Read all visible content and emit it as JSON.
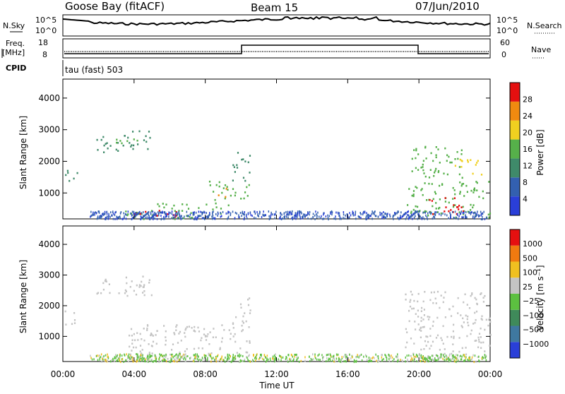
{
  "header": {
    "station": "Goose Bay (fitACF)",
    "beam": "Beam 15",
    "date": "07/Jun/2010"
  },
  "top_panels": {
    "nsky_label": "N.Sky",
    "nsky_ticks": [
      "10^5",
      "10^0"
    ],
    "nsearch_label": "N.Search",
    "nsearch_ticks": [
      "10^5",
      "10^0"
    ],
    "freq_label_1": "Freq.",
    "freq_label_2": "[MHz]",
    "freq_ticks": [
      "18",
      "8"
    ],
    "nave_label": "Nave",
    "nave_ticks": [
      "60",
      "0"
    ],
    "cpid_label": "CPID",
    "cpid_value": "tau (fast) 503"
  },
  "xaxis": {
    "label": "Time UT",
    "ticks": [
      "00:00",
      "04:00",
      "08:00",
      "12:00",
      "16:00",
      "20:00",
      "00:00"
    ]
  },
  "chart_data": [
    {
      "type": "heatmap",
      "name": "power",
      "ylabel": "Slant Range [km]",
      "ylim": [
        180,
        4600
      ],
      "yticks": [
        1000,
        2000,
        3000,
        4000
      ],
      "xlim": [
        0,
        24
      ],
      "colorbar": {
        "label": "Power [dB]",
        "ticks": [
          "28",
          "24",
          "20",
          "16",
          "12",
          "8",
          "4"
        ],
        "colors": [
          "#2a3fd8",
          "#3360b0",
          "#3f8a6a",
          "#56b04a",
          "#f0d020",
          "#f08a10",
          "#e51010"
        ]
      },
      "regions": [
        {
          "t0": 0.1,
          "t1": 0.8,
          "r0": 1400,
          "r1": 1900,
          "level": 2
        },
        {
          "t0": 1.8,
          "t1": 3.2,
          "r0": 2300,
          "r1": 2850,
          "level": 2
        },
        {
          "t0": 3.2,
          "t1": 5.0,
          "r0": 2400,
          "r1": 3000,
          "level": 2
        },
        {
          "t0": 2.8,
          "t1": 4.2,
          "r0": 2500,
          "r1": 2800,
          "level": 3
        },
        {
          "t0": 3.5,
          "t1": 9.5,
          "r0": 200,
          "r1": 700,
          "level": 3
        },
        {
          "t0": 4.0,
          "t1": 7.0,
          "r0": 250,
          "r1": 500,
          "level": 6
        },
        {
          "t0": 8.2,
          "t1": 10.5,
          "r0": 800,
          "r1": 1400,
          "level": 3
        },
        {
          "t0": 8.7,
          "t1": 9.3,
          "r0": 900,
          "r1": 1200,
          "level": 5
        },
        {
          "t0": 9.5,
          "t1": 10.5,
          "r0": 1400,
          "r1": 2300,
          "level": 2
        },
        {
          "t0": 19.2,
          "t1": 24.0,
          "r0": 250,
          "r1": 1400,
          "level": 3
        },
        {
          "t0": 20.5,
          "t1": 22.5,
          "r0": 350,
          "r1": 900,
          "level": 6
        },
        {
          "t0": 19.5,
          "t1": 22.5,
          "r0": 1500,
          "r1": 2500,
          "level": 3
        },
        {
          "t0": 22.0,
          "t1": 23.5,
          "r0": 1600,
          "r1": 2100,
          "level": 4
        }
      ]
    },
    {
      "type": "heatmap",
      "name": "velocity",
      "ylabel": "Slant Range [km]",
      "ylim": [
        180,
        4600
      ],
      "yticks": [
        1000,
        2000,
        3000,
        4000
      ],
      "xlim": [
        0,
        24
      ],
      "colorbar": {
        "label": "Velocity [m s⁻¹]",
        "ticks": [
          "1000",
          "500",
          "100",
          "25",
          "−25",
          "−100",
          "−500",
          "−1000"
        ],
        "colors": [
          "#2a3fd8",
          "#3f78a0",
          "#3f8a5a",
          "#5cc040",
          "#c4c4c4",
          "#f0c020",
          "#f07a10",
          "#e51010"
        ]
      },
      "regions": [
        {
          "t0": 0.1,
          "t1": 0.8,
          "r0": 1400,
          "r1": 1900,
          "level": 4
        },
        {
          "t0": 1.8,
          "t1": 5.0,
          "r0": 2300,
          "r1": 3000,
          "level": 4
        },
        {
          "t0": 3.5,
          "t1": 10.5,
          "r0": 200,
          "r1": 1400,
          "level": 4
        },
        {
          "t0": 4.0,
          "t1": 7.0,
          "r0": 220,
          "r1": 480,
          "level": 3
        },
        {
          "t0": 9.5,
          "t1": 10.5,
          "r0": 1400,
          "r1": 2300,
          "level": 4
        },
        {
          "t0": 19.2,
          "t1": 24.0,
          "r0": 250,
          "r1": 2500,
          "level": 4
        }
      ]
    }
  ]
}
